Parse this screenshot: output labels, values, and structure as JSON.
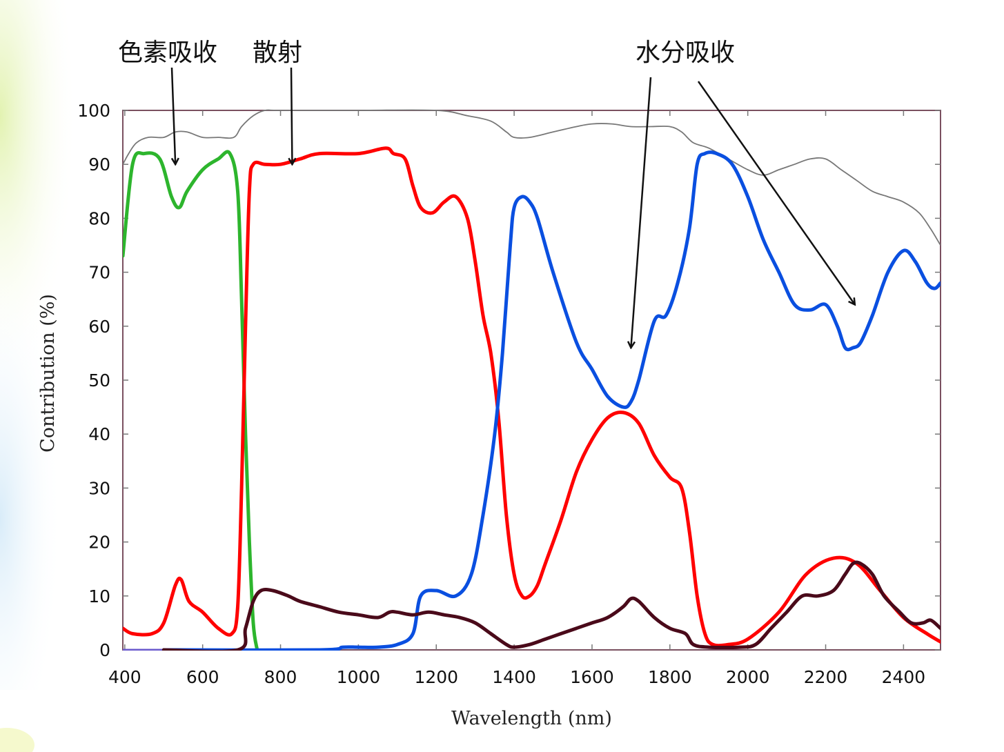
{
  "chart_data": {
    "type": "line",
    "xlabel": "Wavelength (nm)",
    "ylabel": "Contribution (%)",
    "xlim": [
      395,
      2495
    ],
    "ylim": [
      0,
      100
    ],
    "xticks": [
      400,
      600,
      800,
      1000,
      1200,
      1400,
      1600,
      1800,
      2000,
      2200,
      2400
    ],
    "yticks": [
      0,
      10,
      20,
      30,
      40,
      50,
      60,
      70,
      80,
      90,
      100
    ],
    "grid": false,
    "legend": "none",
    "annotations": [
      {
        "text": "色素吸收",
        "target": [
          530,
          90
        ]
      },
      {
        "text": "散射",
        "target": [
          830,
          90
        ]
      },
      {
        "text": "水分吸收",
        "target": [
          1700,
          56
        ]
      },
      {
        "text": "水分吸收",
        "target": [
          2275,
          64
        ]
      }
    ],
    "series": [
      {
        "color": "#2db52d",
        "x": [
          395,
          420,
          450,
          490,
          520,
          540,
          560,
          600,
          640,
          670,
          690,
          700,
          710,
          720,
          730,
          740
        ],
        "y": [
          73,
          90,
          92,
          91,
          84,
          82,
          85,
          89,
          91,
          92,
          85,
          65,
          40,
          20,
          5,
          0
        ]
      },
      {
        "color": "#ff0000",
        "x": [
          395,
          420,
          470,
          500,
          530,
          545,
          565,
          600,
          640,
          675,
          690,
          700,
          710,
          720,
          730,
          760,
          800,
          850,
          900,
          1000,
          1070,
          1090,
          1120,
          1140,
          1160,
          1190,
          1220,
          1250,
          1280,
          1300,
          1320,
          1340,
          1360,
          1380,
          1400,
          1420,
          1440,
          1460,
          1480,
          1520,
          1560,
          1600,
          1640,
          1680,
          1720,
          1760,
          1800,
          1830,
          1850,
          1870,
          1890,
          1910,
          1950,
          2000,
          2080,
          2150,
          2220,
          2280,
          2340,
          2400,
          2460,
          2495
        ],
        "y": [
          4,
          3,
          3,
          5,
          12,
          13,
          9,
          7,
          4,
          3,
          8,
          30,
          60,
          85,
          90,
          90,
          90,
          91,
          92,
          92,
          93,
          92,
          91,
          86,
          82,
          81,
          83,
          84,
          80,
          72,
          62,
          55,
          43,
          25,
          14,
          10,
          10,
          12,
          16,
          24,
          33,
          39,
          43,
          44,
          42,
          36,
          32,
          30,
          22,
          10,
          3,
          1,
          1,
          2,
          7,
          14,
          17,
          16,
          11,
          6,
          3,
          1.5
        ]
      },
      {
        "color": "#0a4fe0",
        "x": [
          500,
          900,
          960,
          1000,
          1050,
          1100,
          1140,
          1160,
          1200,
          1250,
          1290,
          1320,
          1350,
          1370,
          1390,
          1400,
          1420,
          1440,
          1460,
          1500,
          1560,
          1600,
          1640,
          1680,
          1700,
          1720,
          1760,
          1790,
          1820,
          1850,
          1870,
          1890,
          1920,
          1960,
          2000,
          2040,
          2080,
          2120,
          2160,
          2200,
          2230,
          2250,
          2270,
          2290,
          2320,
          2360,
          2400,
          2430,
          2460,
          2480,
          2495
        ],
        "y": [
          0,
          0,
          0.5,
          0.5,
          0.5,
          1,
          3,
          10,
          11,
          10,
          14,
          25,
          40,
          55,
          75,
          82,
          84,
          83,
          80,
          70,
          57,
          52,
          47,
          45,
          46,
          50,
          61,
          62,
          68,
          78,
          90,
          92,
          92,
          90,
          84,
          76,
          70,
          64,
          63,
          64,
          60,
          56,
          56,
          57,
          62,
          70,
          74,
          72,
          68,
          67,
          68
        ]
      },
      {
        "color": "#4a0a1a",
        "x": [
          500,
          690,
          710,
          730,
          750,
          780,
          820,
          850,
          900,
          950,
          1000,
          1050,
          1080,
          1100,
          1140,
          1180,
          1220,
          1260,
          1300,
          1340,
          1380,
          1400,
          1440,
          1480,
          1520,
          1560,
          1600,
          1640,
          1680,
          1700,
          1720,
          1760,
          1800,
          1840,
          1860,
          1900,
          1980,
          2020,
          2060,
          2100,
          2140,
          2180,
          2220,
          2250,
          2270,
          2290,
          2320,
          2350,
          2390,
          2420,
          2450,
          2470,
          2495
        ],
        "y": [
          0,
          0,
          4,
          9,
          11,
          11,
          10,
          9,
          8,
          7,
          6.5,
          6,
          7,
          7,
          6.5,
          7,
          6.5,
          6,
          5,
          3,
          1,
          0.5,
          1,
          2,
          3,
          4,
          5,
          6,
          8,
          9.5,
          9,
          6,
          4,
          3,
          1,
          0.5,
          0.5,
          1,
          4,
          7,
          10,
          10,
          11,
          14,
          16,
          16,
          14,
          10,
          7,
          5,
          5,
          5.5,
          4
        ]
      }
    ],
    "envelope": {
      "color": "#777777",
      "x": [
        395,
        410,
        430,
        460,
        500,
        530,
        560,
        600,
        640,
        680,
        700,
        730,
        760,
        800,
        1000,
        1200,
        1280,
        1340,
        1380,
        1400,
        1440,
        1500,
        1560,
        1600,
        1650,
        1700,
        1750,
        1800,
        1830,
        1860,
        1900,
        1950,
        2000,
        2040,
        2080,
        2120,
        2160,
        2200,
        2240,
        2280,
        2320,
        2360,
        2400,
        2440,
        2470,
        2495
      ],
      "y": [
        90,
        92,
        94,
        95,
        95,
        96,
        96,
        95,
        95,
        95,
        97,
        99,
        100,
        100,
        100,
        100,
        99,
        98,
        96,
        95,
        95,
        96,
        97,
        97.5,
        97.5,
        97,
        97,
        97,
        96,
        94,
        93,
        91,
        89,
        88,
        89,
        90,
        91,
        91,
        89,
        87,
        85,
        84,
        83,
        81,
        78,
        75
      ]
    },
    "baseline": {
      "color": "#6a5acd",
      "x": [
        395,
        500
      ],
      "y": [
        0,
        0
      ]
    }
  }
}
